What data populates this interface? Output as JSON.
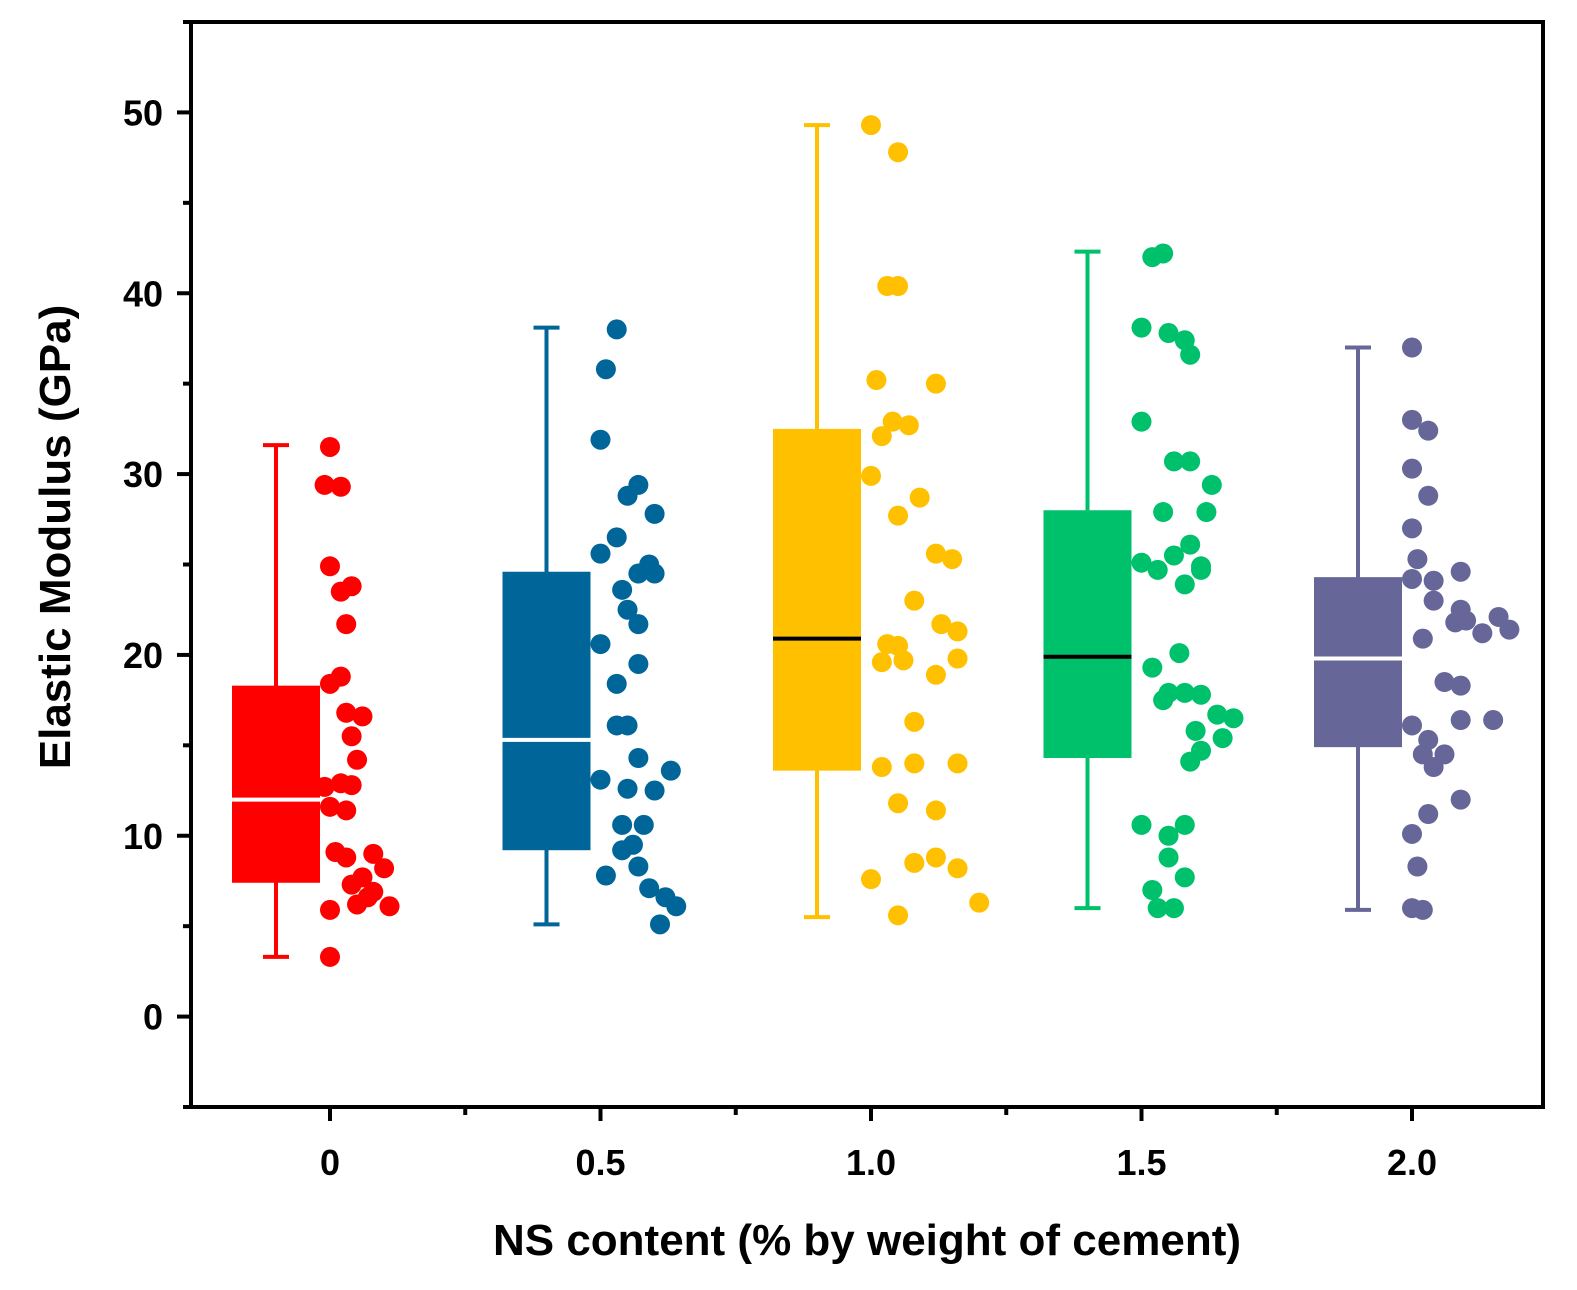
{
  "chart_data": {
    "type": "box",
    "xlabel": "NS content (% by weight of cement)",
    "ylabel": "Elastic Modulus (GPa)",
    "ylim": [
      -5,
      55
    ],
    "yticks": [
      0,
      10,
      20,
      30,
      40,
      50
    ],
    "grid": false,
    "legend": "none",
    "categories": [
      "0",
      "0.5",
      "1.0",
      "1.5",
      "2.0"
    ],
    "series": [
      {
        "category": "0",
        "color": "#ff0000",
        "median_color": "#ffffff",
        "whisker_low": 3.3,
        "q1": 7.4,
        "median": 12.0,
        "q3": 18.3,
        "whisker_high": 31.6,
        "points": [
          [
            0.0,
            31.5
          ],
          [
            -0.01,
            29.4
          ],
          [
            0.02,
            29.3
          ],
          [
            0.0,
            24.9
          ],
          [
            0.04,
            23.8
          ],
          [
            0.02,
            23.5
          ],
          [
            0.03,
            21.7
          ],
          [
            0.02,
            18.8
          ],
          [
            0.0,
            18.4
          ],
          [
            0.03,
            16.8
          ],
          [
            0.06,
            16.6
          ],
          [
            0.04,
            15.5
          ],
          [
            0.05,
            14.2
          ],
          [
            0.02,
            12.9
          ],
          [
            0.04,
            12.8
          ],
          [
            -0.01,
            12.7
          ],
          [
            0.0,
            11.6
          ],
          [
            0.03,
            11.4
          ],
          [
            0.01,
            9.1
          ],
          [
            0.03,
            8.8
          ],
          [
            0.08,
            9.0
          ],
          [
            0.1,
            8.2
          ],
          [
            0.06,
            7.7
          ],
          [
            0.04,
            7.3
          ],
          [
            0.08,
            6.9
          ],
          [
            0.07,
            6.6
          ],
          [
            0.05,
            6.2
          ],
          [
            0.11,
            6.1
          ],
          [
            0.0,
            5.9
          ],
          [
            0.0,
            3.3
          ]
        ]
      },
      {
        "category": "0.5",
        "color": "#006699",
        "median_color": "#ffffff",
        "whisker_low": 5.1,
        "q1": 9.2,
        "median": 15.3,
        "q3": 24.6,
        "whisker_high": 38.1,
        "points": [
          [
            0.03,
            38.0
          ],
          [
            0.01,
            35.8
          ],
          [
            0.0,
            31.9
          ],
          [
            0.07,
            29.4
          ],
          [
            0.05,
            28.8
          ],
          [
            0.1,
            27.8
          ],
          [
            0.03,
            26.5
          ],
          [
            0.0,
            25.6
          ],
          [
            0.09,
            25.0
          ],
          [
            0.07,
            24.5
          ],
          [
            0.1,
            24.5
          ],
          [
            0.04,
            23.6
          ],
          [
            0.05,
            22.5
          ],
          [
            0.07,
            21.7
          ],
          [
            0.0,
            20.6
          ],
          [
            0.07,
            19.5
          ],
          [
            0.03,
            18.4
          ],
          [
            0.03,
            16.1
          ],
          [
            0.05,
            16.1
          ],
          [
            0.07,
            14.3
          ],
          [
            0.0,
            13.1
          ],
          [
            0.13,
            13.6
          ],
          [
            0.05,
            12.6
          ],
          [
            0.1,
            12.5
          ],
          [
            0.04,
            10.6
          ],
          [
            0.08,
            10.6
          ],
          [
            0.06,
            9.5
          ],
          [
            0.04,
            9.2
          ],
          [
            0.07,
            8.3
          ],
          [
            0.01,
            7.8
          ],
          [
            0.09,
            7.1
          ],
          [
            0.12,
            6.6
          ],
          [
            0.14,
            6.1
          ],
          [
            0.11,
            5.1
          ]
        ]
      },
      {
        "category": "1.0",
        "color": "#ffc000",
        "median_color": "#000000",
        "whisker_low": 5.5,
        "q1": 13.6,
        "median": 20.9,
        "q3": 32.5,
        "whisker_high": 49.3,
        "points": [
          [
            0.0,
            49.3
          ],
          [
            0.05,
            47.8
          ],
          [
            0.03,
            40.4
          ],
          [
            0.05,
            40.4
          ],
          [
            0.01,
            35.2
          ],
          [
            0.12,
            35.0
          ],
          [
            0.04,
            32.9
          ],
          [
            0.07,
            32.7
          ],
          [
            0.02,
            32.1
          ],
          [
            0.0,
            29.9
          ],
          [
            0.09,
            28.7
          ],
          [
            0.05,
            27.7
          ],
          [
            0.12,
            25.6
          ],
          [
            0.15,
            25.3
          ],
          [
            0.08,
            23.0
          ],
          [
            0.13,
            21.7
          ],
          [
            0.16,
            21.3
          ],
          [
            0.03,
            20.6
          ],
          [
            0.05,
            20.5
          ],
          [
            0.02,
            19.6
          ],
          [
            0.06,
            19.7
          ],
          [
            0.16,
            19.8
          ],
          [
            0.12,
            18.9
          ],
          [
            0.08,
            16.3
          ],
          [
            0.08,
            14.0
          ],
          [
            0.16,
            14.0
          ],
          [
            0.02,
            13.8
          ],
          [
            0.05,
            11.8
          ],
          [
            0.12,
            11.4
          ],
          [
            0.12,
            8.8
          ],
          [
            0.08,
            8.5
          ],
          [
            0.16,
            8.2
          ],
          [
            0.0,
            7.6
          ],
          [
            0.2,
            6.3
          ],
          [
            0.05,
            5.6
          ]
        ]
      },
      {
        "category": "1.5",
        "color": "#00c16b",
        "median_color": "#000000",
        "whisker_low": 6.0,
        "q1": 14.3,
        "median": 19.9,
        "q3": 28.0,
        "whisker_high": 42.3,
        "points": [
          [
            0.04,
            42.2
          ],
          [
            0.02,
            42.0
          ],
          [
            0.0,
            38.1
          ],
          [
            0.05,
            37.8
          ],
          [
            0.08,
            37.4
          ],
          [
            0.09,
            36.6
          ],
          [
            0.0,
            32.9
          ],
          [
            0.06,
            30.7
          ],
          [
            0.09,
            30.7
          ],
          [
            0.13,
            29.4
          ],
          [
            0.04,
            27.9
          ],
          [
            0.12,
            27.9
          ],
          [
            0.09,
            26.1
          ],
          [
            0.06,
            25.5
          ],
          [
            0.0,
            25.1
          ],
          [
            0.11,
            24.9
          ],
          [
            0.03,
            24.7
          ],
          [
            0.08,
            23.9
          ],
          [
            0.11,
            24.7
          ],
          [
            0.07,
            20.1
          ],
          [
            0.02,
            19.3
          ],
          [
            0.05,
            17.9
          ],
          [
            0.08,
            17.9
          ],
          [
            0.11,
            17.8
          ],
          [
            0.04,
            17.5
          ],
          [
            0.14,
            16.7
          ],
          [
            0.17,
            16.5
          ],
          [
            0.1,
            15.8
          ],
          [
            0.15,
            15.4
          ],
          [
            0.11,
            14.7
          ],
          [
            0.09,
            14.1
          ],
          [
            0.0,
            10.6
          ],
          [
            0.08,
            10.6
          ],
          [
            0.05,
            10.0
          ],
          [
            0.05,
            8.8
          ],
          [
            0.08,
            7.7
          ],
          [
            0.02,
            7.0
          ],
          [
            0.03,
            6.0
          ],
          [
            0.06,
            6.0
          ]
        ]
      },
      {
        "category": "2.0",
        "color": "#666699",
        "median_color": "#ffffff",
        "whisker_low": 5.9,
        "q1": 14.9,
        "median": 19.8,
        "q3": 24.3,
        "whisker_high": 37.0,
        "points": [
          [
            0.0,
            37.0
          ],
          [
            0.0,
            33.0
          ],
          [
            0.03,
            32.4
          ],
          [
            0.0,
            30.3
          ],
          [
            0.03,
            28.8
          ],
          [
            0.0,
            27.0
          ],
          [
            0.01,
            25.3
          ],
          [
            0.09,
            24.6
          ],
          [
            0.04,
            24.1
          ],
          [
            0.0,
            24.2
          ],
          [
            0.04,
            23.0
          ],
          [
            0.09,
            22.5
          ],
          [
            0.1,
            21.9
          ],
          [
            0.08,
            21.8
          ],
          [
            0.16,
            22.1
          ],
          [
            0.13,
            21.2
          ],
          [
            0.18,
            21.4
          ],
          [
            0.02,
            20.9
          ],
          [
            0.06,
            18.5
          ],
          [
            0.09,
            18.3
          ],
          [
            0.09,
            16.4
          ],
          [
            0.15,
            16.4
          ],
          [
            0.0,
            16.1
          ],
          [
            0.03,
            15.3
          ],
          [
            0.02,
            14.5
          ],
          [
            0.06,
            14.5
          ],
          [
            0.04,
            13.8
          ],
          [
            0.09,
            12.0
          ],
          [
            0.03,
            11.2
          ],
          [
            0.0,
            10.1
          ],
          [
            0.01,
            8.3
          ],
          [
            0.0,
            6.0
          ],
          [
            0.02,
            5.9
          ]
        ]
      }
    ]
  }
}
